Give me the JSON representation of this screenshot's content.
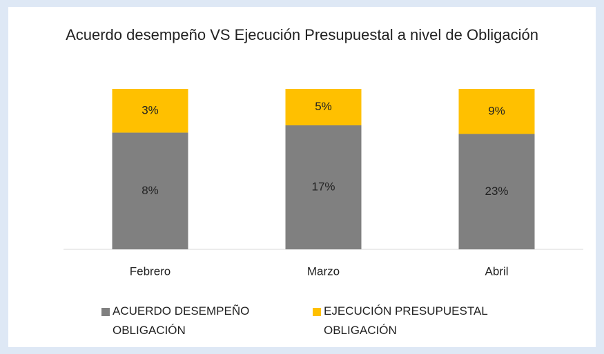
{
  "chart_data": {
    "type": "bar",
    "stacked": "percent",
    "title": "Acuerdo desempeño VS Ejecución Presupuestal a nivel de Obligación",
    "categories": [
      "Febrero",
      "Marzo",
      "Abril"
    ],
    "series": [
      {
        "name": "ACUERDO DESEMPEÑO OBLIGACIÓN",
        "color": "#808080",
        "values": [
          8,
          17,
          23
        ],
        "value_labels": [
          "8%",
          "17%",
          "23%"
        ]
      },
      {
        "name": "EJECUCIÓN PRESUPUESTAL OBLIGACIÓN",
        "color": "#ffc000",
        "values": [
          3,
          5,
          9
        ],
        "value_labels": [
          "3%",
          "5%",
          "9%"
        ]
      }
    ]
  }
}
